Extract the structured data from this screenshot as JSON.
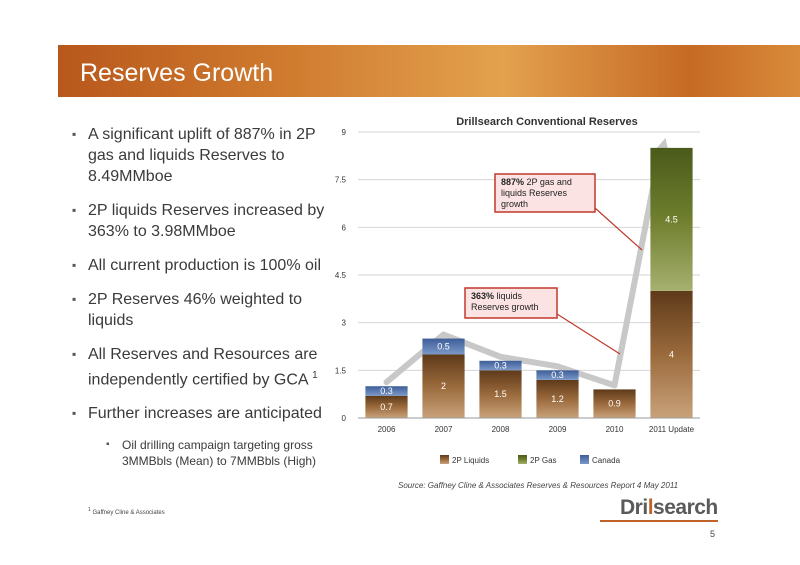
{
  "slide": {
    "title": "Reserves Growth",
    "page_number": "5",
    "source": "Source: Gaffney Cline & Associates Reserves & Resources Report 4 May 2011",
    "footnote_marker": "1",
    "footnote_text": "Gaffney Cline & Associates",
    "logo": {
      "part1": "Dri",
      "part2": "l",
      "part3": "search"
    }
  },
  "bullets": [
    "A significant uplift of 887% in 2P gas and liquids Reserves to 8.49MMboe",
    "2P liquids Reserves increased by 363% to 3.98MMboe",
    "All current production is 100% oil",
    "2P Reserves 46% weighted to liquids",
    "All Reserves and Resources are independently certified by GCA"
  ],
  "bullet_superscript": "1",
  "bullet_last": "Further increases are anticipated",
  "sub_bullet": "Oil drilling campaign targeting gross 3MMBbls (Mean) to 7MMBbls (High)",
  "chart_data": {
    "type": "bar",
    "stacked": true,
    "title": "Drillsearch Conventional Reserves",
    "categories": [
      "2006",
      "2007",
      "2008",
      "2009",
      "2010",
      "2011 Update"
    ],
    "series": [
      {
        "name": "2P Liquids",
        "color": "#8a5a2e",
        "values": [
          0.7,
          2,
          1.5,
          1.2,
          0.9,
          4
        ]
      },
      {
        "name": "2P Gas",
        "color": "#6b7a2a",
        "values": [
          0,
          0,
          0,
          0,
          0,
          4.5
        ]
      },
      {
        "name": "Canada",
        "color": "#4f6fa8",
        "values": [
          0.3,
          0.5,
          0.3,
          0.3,
          0,
          0
        ]
      }
    ],
    "data_labels": [
      {
        "category": "2006",
        "series": "2P Liquids",
        "text": "0.7"
      },
      {
        "category": "2006",
        "series": "Canada",
        "text": "0.3"
      },
      {
        "category": "2007",
        "series": "2P Liquids",
        "text": "2"
      },
      {
        "category": "2007",
        "series": "Canada",
        "text": "0.5"
      },
      {
        "category": "2008",
        "series": "2P Liquids",
        "text": "1.5"
      },
      {
        "category": "2008",
        "series": "Canada",
        "text": "0.3"
      },
      {
        "category": "2009",
        "series": "2P Liquids",
        "text": "1.2"
      },
      {
        "category": "2009",
        "series": "Canada",
        "text": "0.3"
      },
      {
        "category": "2010",
        "series": "2P Liquids",
        "text": "0.9"
      },
      {
        "category": "2011 Update",
        "series": "2P Liquids",
        "text": "4"
      },
      {
        "category": "2011 Update",
        "series": "2P Gas",
        "text": "4.5"
      }
    ],
    "yticks": [
      "0",
      "1.5",
      "3",
      "4.5",
      "6",
      "7.5",
      "9"
    ],
    "ylim": [
      0,
      9
    ],
    "legend_position": "bottom",
    "annotations": [
      {
        "bold": "887%",
        "text": " 2P gas and liquids Reserves growth"
      },
      {
        "bold": "363%",
        "text": " liquids Reserves growth"
      }
    ]
  }
}
